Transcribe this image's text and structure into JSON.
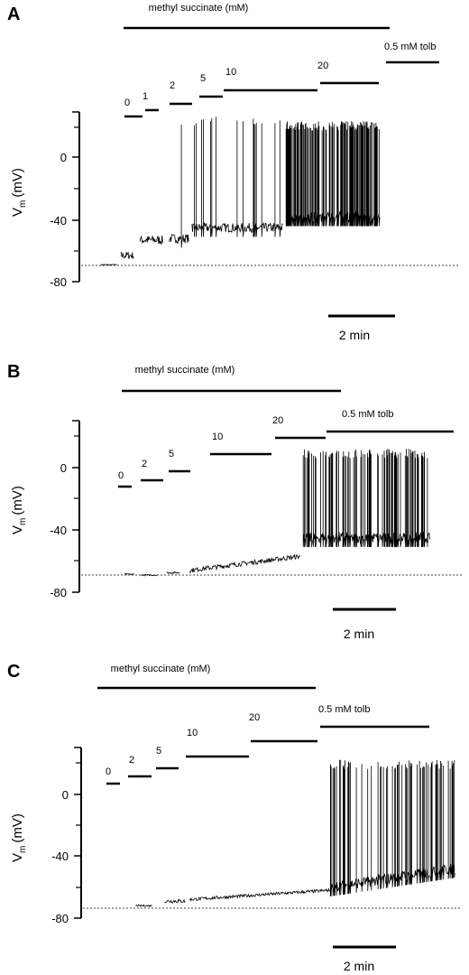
{
  "chart_data": [
    {
      "type": "line",
      "panel": "A",
      "ylabel": "V",
      "ylabel_sub": "m",
      "ylabel_unit": "(mV)",
      "ylim": [
        -80,
        30
      ],
      "yticks": [
        0,
        -40,
        -80
      ],
      "top_bar_label": "methyl succinate (mM)",
      "concentration_labels": [
        "0",
        "1",
        "2",
        "5",
        "10",
        "20",
        "0.5 mM tolb"
      ],
      "scale_bar_label": "2 min",
      "baseline_mV": -69,
      "trace_color": "#000000",
      "segments": [
        {
          "label": "0",
          "start_min": 0.0,
          "end_min": 0.5,
          "level_mV": -69,
          "noise": 0.3,
          "spikes": 0
        },
        {
          "label": "1",
          "start_min": 0.6,
          "end_min": 1.0,
          "level_mV": -63,
          "noise": 2.5,
          "spikes": 0
        },
        {
          "label": "2",
          "start_min": 1.2,
          "end_min": 1.9,
          "level_mV": -53,
          "noise": 3.0,
          "spikes": 0
        },
        {
          "label": "5",
          "start_min": 2.1,
          "end_min": 2.7,
          "level_mV": -52,
          "noise": 3.0,
          "spikes": 1,
          "spike_peak_mV": 27
        },
        {
          "label": "10",
          "start_min": 2.8,
          "end_min": 5.6,
          "level_mV": -45,
          "noise": 3.0,
          "spikes": 17,
          "spike_peak_mV": 27
        },
        {
          "label": "20",
          "start_min": 5.7,
          "end_min": 8.6,
          "level_mV": -38,
          "noise": 3.5,
          "spikes": 160,
          "spike_peak_mV": 24
        }
      ]
    },
    {
      "type": "line",
      "panel": "B",
      "ylabel": "V",
      "ylabel_sub": "m",
      "ylabel_unit": "(mV)",
      "ylim": [
        -80,
        30
      ],
      "yticks": [
        0,
        -40,
        -80
      ],
      "top_bar_label": "methyl succinate (mM)",
      "concentration_labels": [
        "0",
        "2",
        "5",
        "10",
        "20",
        "0.5 mM tolb"
      ],
      "scale_bar_label": "2 min",
      "baseline_mV": -69,
      "trace_color": "#000000",
      "segments": [
        {
          "label": "0",
          "start_min": 0.2,
          "end_min": 0.5,
          "level_mV": -68.5,
          "noise": 0.4,
          "spikes": 0
        },
        {
          "label": "2",
          "start_min": 0.7,
          "end_min": 1.2,
          "level_mV": -69,
          "noise": 0.4,
          "spikes": 0
        },
        {
          "label": "5",
          "start_min": 1.5,
          "end_min": 1.9,
          "level_mV": -67.5,
          "noise": 0.6,
          "spikes": 0
        },
        {
          "label": "10/20",
          "start_min": 2.2,
          "end_min": 5.6,
          "level_start_mV": -66,
          "level_end_mV": -57,
          "noise": 1.5,
          "spikes": 0
        },
        {
          "label": "tolb",
          "start_min": 5.7,
          "end_min": 9.6,
          "level_mV": -45,
          "noise": 3.5,
          "spikes": 110,
          "spike_peak_mV": 12
        }
      ]
    },
    {
      "type": "line",
      "panel": "C",
      "ylabel": "V",
      "ylabel_sub": "m",
      "ylabel_unit": "(mV)",
      "ylim": [
        -80,
        30
      ],
      "yticks": [
        0,
        -40,
        -80
      ],
      "top_bar_label": "methyl succinate (mM)",
      "concentration_labels": [
        "0",
        "2",
        "5",
        "10",
        "20",
        "0.5 mM tolb"
      ],
      "scale_bar_label": "2 min",
      "baseline_mV": -73,
      "trace_color": "#000000",
      "segments": [
        {
          "label": "2",
          "start_min": 0.7,
          "end_min": 1.1,
          "level_mV": -72,
          "noise": 0.5,
          "spikes": 0
        },
        {
          "label": "5",
          "start_min": 1.4,
          "end_min": 1.9,
          "level_mV": -69,
          "noise": 1.2,
          "spikes": 0
        },
        {
          "label": "10/20",
          "start_min": 2.0,
          "end_min": 5.4,
          "level_start_mV": -68,
          "level_end_mV": -62,
          "noise": 1.0,
          "spikes": 0
        },
        {
          "label": "tolb",
          "start_min": 5.4,
          "end_min": 8.4,
          "level_start_mV": -60,
          "level_end_mV": -48,
          "noise": 3.5,
          "spikes": 75,
          "spike_peak_mV": 22
        }
      ]
    }
  ]
}
